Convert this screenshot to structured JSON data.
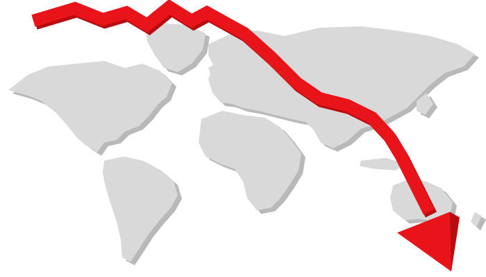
{
  "illustration": {
    "subject": "",
    "colors": {
      "background": "#ffffff",
      "land": "#d9d9d9",
      "land_shadow": "#b9b9b9",
      "arrow": "#e8141a",
      "arrow_dark": "#b80c10"
    },
    "icons": [
      "world-map-icon",
      "downward-trend-arrow-icon"
    ]
  }
}
